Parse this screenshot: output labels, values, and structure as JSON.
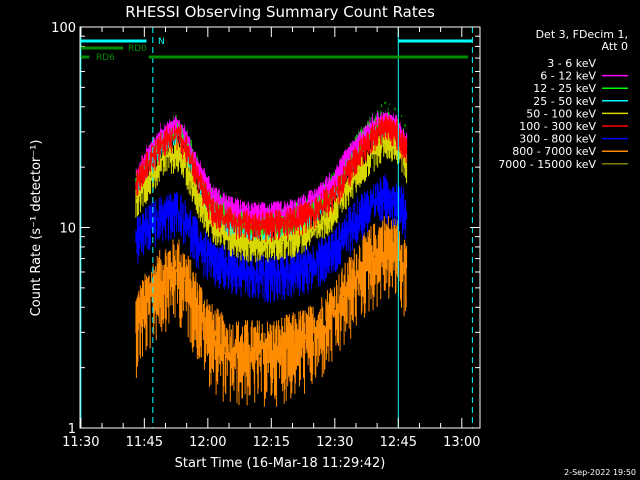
{
  "chart_data": {
    "type": "line",
    "title": "RHESSI Observing Summary Count Rates",
    "xlabel": "Start Time (16-Mar-18 11:29:42)",
    "ylabel": "Count Rate (s⁻¹ detector⁻¹)",
    "yscale": "log",
    "ylim": [
      1,
      100
    ],
    "y_ticks": [
      {
        "value": 1,
        "label": "1"
      },
      {
        "value": 10,
        "label": "10"
      },
      {
        "value": 100,
        "label": "100"
      }
    ],
    "xlim_minutes": [
      -0.2,
      94.3
    ],
    "x_ticks": [
      {
        "minute": 0,
        "label": "11:30"
      },
      {
        "minute": 15,
        "label": "11:45"
      },
      {
        "minute": 30,
        "label": "12:00"
      },
      {
        "minute": 45,
        "label": "12:15"
      },
      {
        "minute": 60,
        "label": "12:30"
      },
      {
        "minute": 75,
        "label": "12:45"
      },
      {
        "minute": 90,
        "label": "13:00"
      }
    ],
    "legend": {
      "position": "right",
      "header": [
        "Det 3, FDecim 1,",
        "Att 0"
      ]
    },
    "series": [
      {
        "name": "3 - 6 keV",
        "color": "#000000",
        "x": [
          13,
          17,
          20,
          23,
          25,
          28,
          31,
          35,
          40,
          45,
          50,
          55,
          60,
          63,
          66,
          69,
          72,
          75,
          77
        ],
        "y": [
          21,
          30,
          36,
          39,
          33,
          23,
          18,
          17,
          17,
          17.5,
          17,
          19,
          24,
          29,
          34,
          38,
          42,
          38,
          30
        ]
      },
      {
        "name": "6 - 12 keV",
        "color": "#ff00ff",
        "x": [
          13,
          17,
          20,
          23,
          25,
          28,
          31,
          35,
          40,
          45,
          50,
          55,
          60,
          63,
          66,
          69,
          72,
          75,
          77
        ],
        "y": [
          19,
          27,
          32,
          35,
          29,
          20,
          15,
          13,
          12,
          12,
          12.5,
          14,
          18,
          23,
          28,
          33,
          36,
          34,
          27
        ]
      },
      {
        "name": "12 - 25 keV",
        "color": "#00ff00",
        "x": [
          13,
          17,
          20,
          23,
          25,
          28,
          31,
          35,
          40,
          45,
          50,
          55,
          60,
          63,
          66,
          69,
          72,
          75,
          77
        ],
        "y": [
          18,
          25,
          31,
          34,
          28,
          19,
          14,
          12,
          11,
          11,
          11.5,
          13,
          17,
          22,
          28,
          34,
          38,
          35,
          28
        ]
      },
      {
        "name": "25 - 50 keV",
        "color": "#00ffff",
        "x": [
          13,
          17,
          20,
          23,
          25,
          28,
          31,
          35,
          40,
          45,
          50,
          55,
          60,
          63,
          66,
          69,
          72,
          75,
          77
        ],
        "y": [
          17,
          24,
          29,
          32,
          26,
          18,
          13,
          11,
          10.5,
          10.5,
          11,
          12.5,
          16,
          21,
          26,
          31,
          35,
          32,
          26
        ]
      },
      {
        "name": "50 - 100 keV",
        "color": "#d8d800",
        "x": [
          13,
          17,
          20,
          23,
          25,
          28,
          31,
          35,
          40,
          45,
          50,
          55,
          60,
          63,
          66,
          69,
          72,
          75,
          77
        ],
        "y": [
          14,
          19,
          23,
          24,
          20,
          14,
          10.5,
          9,
          8.5,
          8.5,
          9,
          10,
          12.5,
          16,
          20,
          24,
          28,
          26,
          21
        ]
      },
      {
        "name": "100 - 300 keV",
        "color": "#ff0000",
        "x": [
          13,
          17,
          20,
          23,
          25,
          28,
          31,
          35,
          40,
          45,
          50,
          55,
          60,
          63,
          66,
          69,
          72,
          75,
          77
        ],
        "y": [
          17,
          23,
          28,
          30,
          25,
          17,
          12.5,
          11,
          10.5,
          10.5,
          11,
          12,
          15,
          19,
          24,
          29,
          33,
          30,
          24
        ]
      },
      {
        "name": "300 - 800 keV",
        "color": "#0000ff",
        "x": [
          13,
          17,
          20,
          23,
          25,
          28,
          31,
          35,
          40,
          45,
          50,
          55,
          60,
          63,
          66,
          69,
          72,
          75,
          77
        ],
        "y": [
          9,
          11,
          12,
          12.5,
          11,
          8.5,
          7,
          6.5,
          6,
          6,
          6.2,
          6.8,
          8,
          10,
          12,
          13.5,
          15,
          14,
          12
        ]
      },
      {
        "name": "800 - 7000 keV",
        "color": "#ff8c00",
        "x": [
          13,
          17,
          20,
          23,
          25,
          28,
          31,
          35,
          40,
          45,
          50,
          55,
          60,
          63,
          66,
          69,
          72,
          75,
          77
        ],
        "y": [
          3.5,
          5,
          6,
          6.5,
          5.5,
          4,
          3,
          2.5,
          2.5,
          2.5,
          2.7,
          3,
          4,
          5,
          6.5,
          7.5,
          8.5,
          8,
          6.5
        ]
      },
      {
        "name": "7000 - 15000 keV",
        "color": "#808000",
        "x": [],
        "y": []
      }
    ],
    "annotations": {
      "saa_flag": {
        "label": "N",
        "color": "#00ffff",
        "segments": [
          [
            0,
            15.5
          ],
          [
            75,
            92.5
          ]
        ]
      },
      "decim_flag": {
        "label": "RD0",
        "color": "#008c00",
        "segments": [
          [
            0,
            10
          ]
        ]
      },
      "night_flag": {
        "label": "RD6",
        "color": "#008c00",
        "segments": [
          [
            0,
            2
          ],
          [
            16,
            37.5
          ],
          [
            37.5,
            58.5
          ],
          [
            58.5,
            82
          ],
          [
            82,
            91.5
          ]
        ]
      },
      "vertical_lines": {
        "color": "#00ffff",
        "solid_minutes": [
          0,
          75
        ],
        "dashed_minutes": [
          17,
          92.5
        ]
      }
    },
    "footer_date": "2-Sep-2022 19:50"
  }
}
